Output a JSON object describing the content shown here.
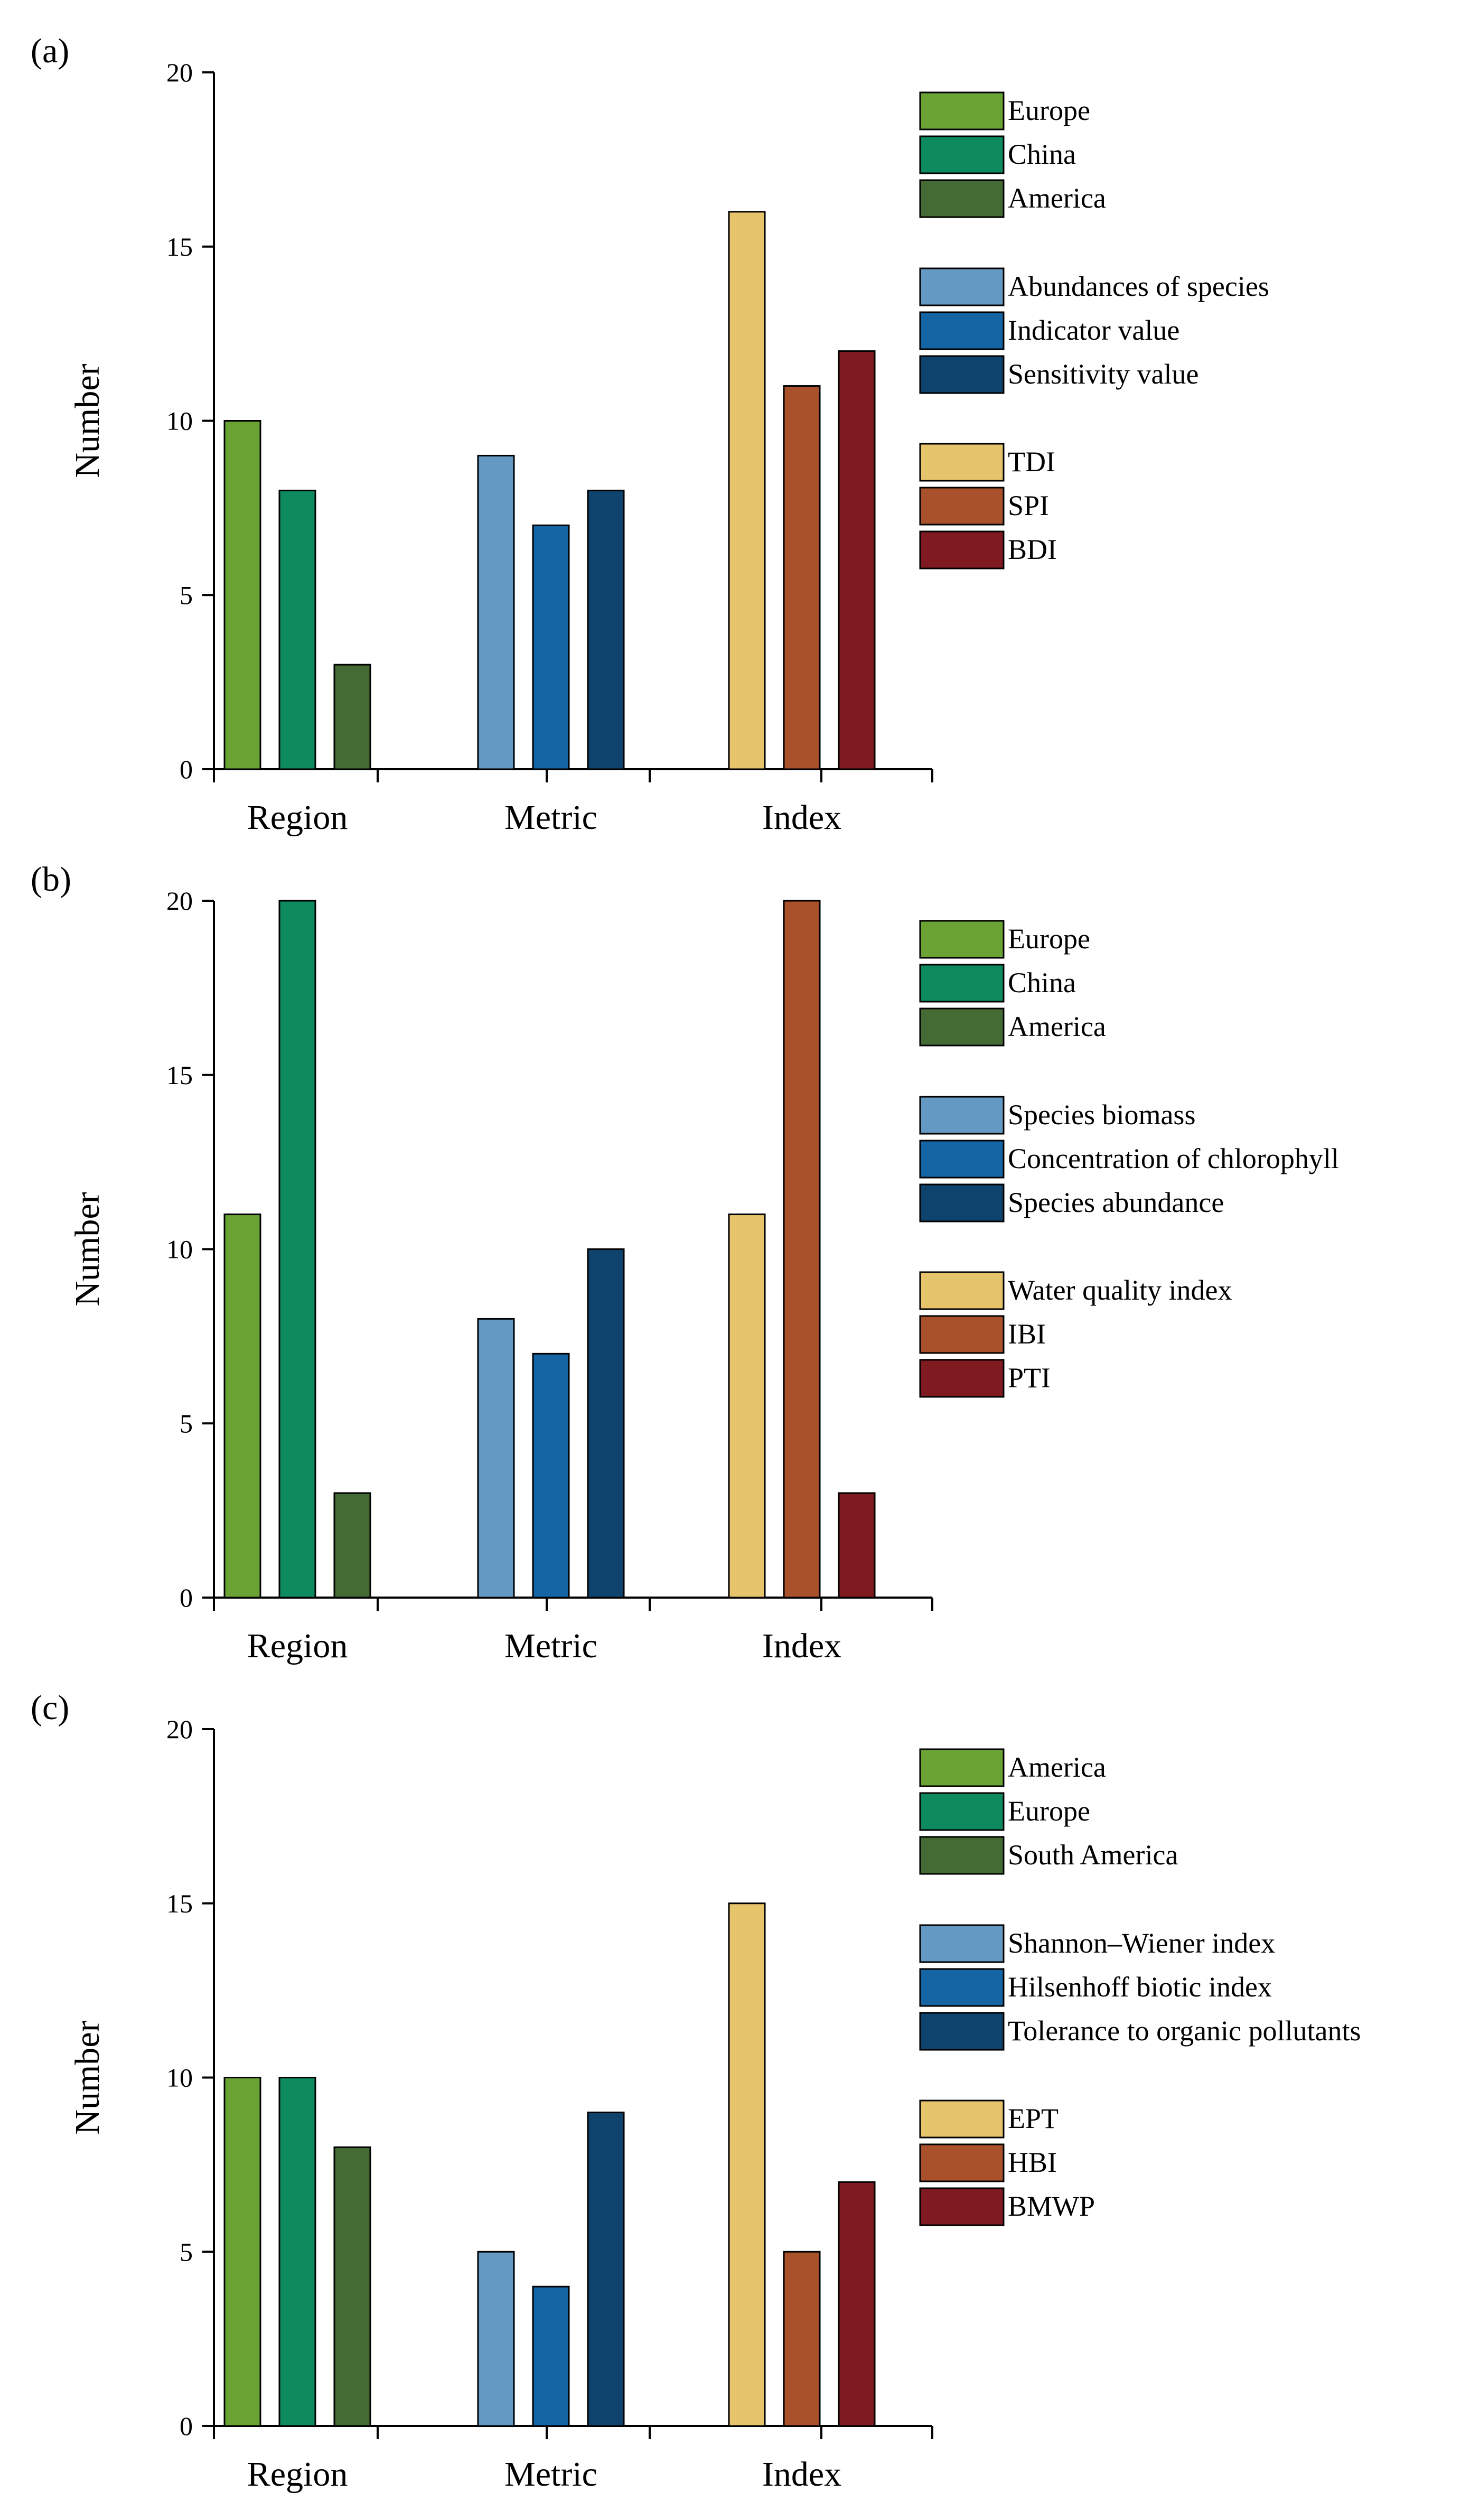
{
  "chart_data": [
    {
      "type": "bar",
      "panel_label": "(a)",
      "ylabel": "Number",
      "ylim": [
        0,
        20
      ],
      "yticks": [
        "0",
        "5",
        "10",
        "15",
        "20"
      ],
      "categories": [
        "Region",
        "Metric",
        "Index"
      ],
      "groups": [
        {
          "category": "Region",
          "bars": [
            {
              "name": "Europe",
              "value": 10,
              "color": "#6aa334"
            },
            {
              "name": "China",
              "value": 8,
              "color": "#0e8a5f"
            },
            {
              "name": "America",
              "value": 3,
              "color": "#436b33"
            }
          ]
        },
        {
          "category": "Metric",
          "bars": [
            {
              "name": "Abundances of species",
              "value": 9,
              "color": "#6399c3"
            },
            {
              "name": "Indicator value",
              "value": 7,
              "color": "#1565a5"
            },
            {
              "name": "Sensitivity value",
              "value": 8,
              "color": "#0e436e"
            }
          ]
        },
        {
          "category": "Index",
          "bars": [
            {
              "name": "TDI",
              "value": 16,
              "color": "#e5c46c"
            },
            {
              "name": "SPI",
              "value": 11,
              "color": "#a8512a"
            },
            {
              "name": "BDI",
              "value": 12,
              "color": "#7f1a20"
            }
          ]
        }
      ],
      "legend_position": "right"
    },
    {
      "type": "bar",
      "panel_label": "(b)",
      "ylabel": "Number",
      "ylim": [
        0,
        20
      ],
      "yticks": [
        "0",
        "5",
        "10",
        "15",
        "20"
      ],
      "categories": [
        "Region",
        "Metric",
        "Index"
      ],
      "groups": [
        {
          "category": "Region",
          "bars": [
            {
              "name": "Europe",
              "value": 11,
              "color": "#6aa334"
            },
            {
              "name": "China",
              "value": 20,
              "color": "#0e8a5f"
            },
            {
              "name": "America",
              "value": 3,
              "color": "#436b33"
            }
          ]
        },
        {
          "category": "Metric",
          "bars": [
            {
              "name": "Species biomass",
              "value": 8,
              "color": "#6399c3"
            },
            {
              "name": "Concentration of chlorophyll",
              "value": 7,
              "color": "#1565a5"
            },
            {
              "name": "Species abundance",
              "value": 10,
              "color": "#0e436e"
            }
          ]
        },
        {
          "category": "Index",
          "bars": [
            {
              "name": "Water quality index",
              "value": 11,
              "color": "#e5c46c"
            },
            {
              "name": "IBI",
              "value": 20,
              "color": "#a8512a"
            },
            {
              "name": "PTI",
              "value": 3,
              "color": "#7f1a20"
            }
          ]
        }
      ],
      "legend_position": "right"
    },
    {
      "type": "bar",
      "panel_label": "(c)",
      "ylabel": "Number",
      "ylim": [
        0,
        20
      ],
      "yticks": [
        "0",
        "5",
        "10",
        "15",
        "20"
      ],
      "categories": [
        "Region",
        "Metric",
        "Index"
      ],
      "groups": [
        {
          "category": "Region",
          "bars": [
            {
              "name": "America",
              "value": 10,
              "color": "#6aa334"
            },
            {
              "name": "Europe",
              "value": 10,
              "color": "#0e8a5f"
            },
            {
              "name": "South America",
              "value": 8,
              "color": "#436b33"
            }
          ]
        },
        {
          "category": "Metric",
          "bars": [
            {
              "name": "Shannon–Wiener index",
              "value": 5,
              "color": "#6399c3"
            },
            {
              "name": "Hilsenhoff biotic index",
              "value": 4,
              "color": "#1565a5"
            },
            {
              "name": "Tolerance to organic pollutants",
              "value": 9,
              "color": "#0e436e"
            }
          ]
        },
        {
          "category": "Index",
          "bars": [
            {
              "name": "EPT",
              "value": 15,
              "color": "#e5c46c"
            },
            {
              "name": "HBI",
              "value": 5,
              "color": "#a8512a"
            },
            {
              "name": "BMWP",
              "value": 7,
              "color": "#7f1a20"
            }
          ]
        }
      ],
      "legend_position": "right"
    }
  ]
}
